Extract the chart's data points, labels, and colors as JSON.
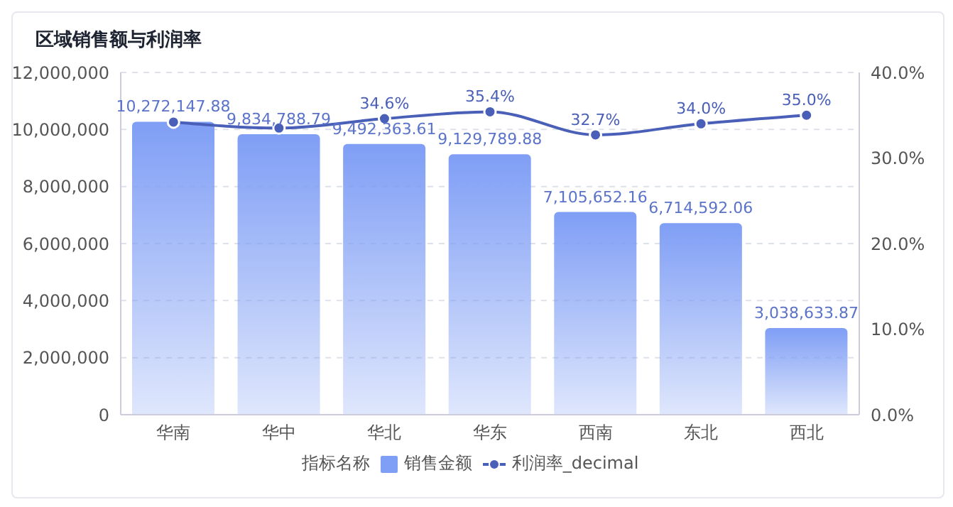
{
  "chart_data": {
    "type": "bar",
    "title": "区域销售额与利润率",
    "legend_title": "指标名称",
    "categories": [
      "华南",
      "华中",
      "华北",
      "华东",
      "西南",
      "东北",
      "西北"
    ],
    "series": [
      {
        "name": "销售金额",
        "color": "#7f9ef5",
        "values": [
          10272147.88,
          9834788.79,
          9492363.61,
          9129789.88,
          7105652.16,
          6714592.06,
          3038633.87
        ],
        "value_labels": [
          "10,272,147.88",
          "9,834,788.79",
          "9,492,363.61",
          "9,129,789.88",
          "7,105,652.16",
          "6,714,592.06",
          "3,038,633.87"
        ]
      },
      {
        "name": "利润率_decimal",
        "type": "line",
        "axis": "y2",
        "color": "#4a5fb8",
        "values": [
          34.2,
          33.5,
          34.6,
          35.4,
          32.7,
          34.0,
          35.0
        ],
        "value_labels": [
          null,
          null,
          "34.6%",
          "35.4%",
          "32.7%",
          "34.0%",
          "35.0%"
        ]
      }
    ],
    "ylim": [
      0,
      12000000
    ],
    "yticks": [
      {
        "value": 0,
        "label": "0"
      },
      {
        "value": 2000000,
        "label": "2,000,000"
      },
      {
        "value": 4000000,
        "label": "4,000,000"
      },
      {
        "value": 6000000,
        "label": "6,000,000"
      },
      {
        "value": 8000000,
        "label": "8,000,000"
      },
      {
        "value": 10000000,
        "label": "10,000,000"
      },
      {
        "value": 12000000,
        "label": "12,000,000"
      }
    ],
    "y2lim": [
      0,
      40
    ],
    "y2ticks": [
      {
        "value": 0,
        "label": "0.0%"
      },
      {
        "value": 10,
        "label": "10.0%"
      },
      {
        "value": 20,
        "label": "20.0%"
      },
      {
        "value": 30,
        "label": "30.0%"
      },
      {
        "value": 40,
        "label": "40.0%"
      }
    ],
    "grid": "y",
    "legend": "bottom",
    "marker": "circle",
    "line_style": "solid"
  }
}
